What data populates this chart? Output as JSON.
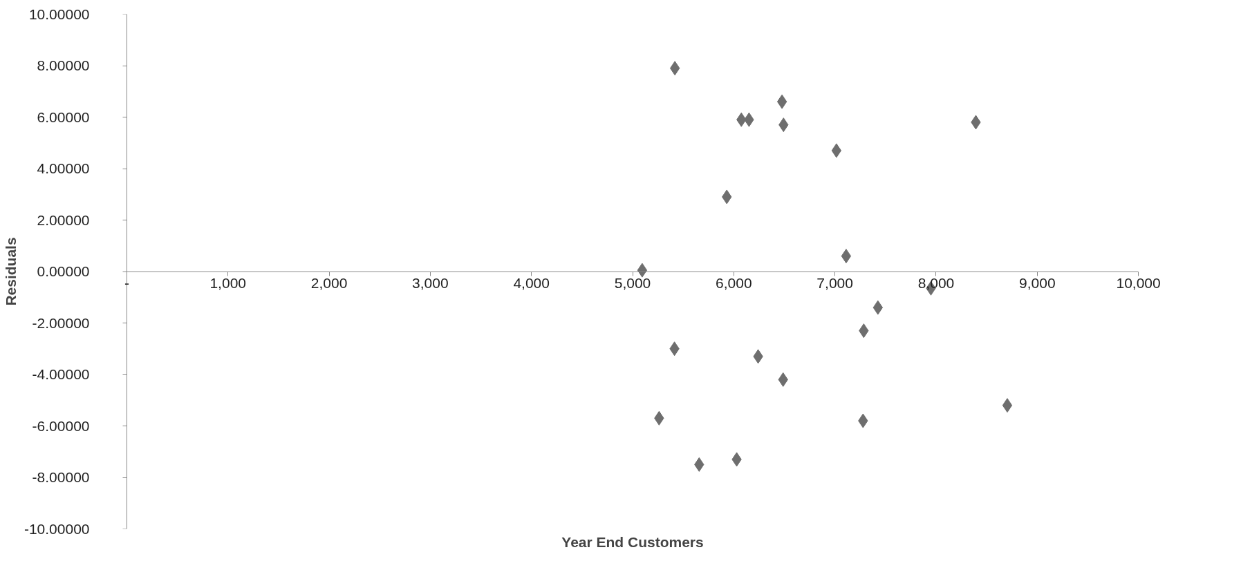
{
  "chart_data": {
    "type": "scatter",
    "xlabel": "Year End Customers",
    "ylabel": "Residuals",
    "x": [
      5418,
      6477,
      6075,
      6151,
      6492,
      8393,
      7015,
      5931,
      7111,
      5095,
      7949,
      7425,
      7285,
      5414,
      6241,
      6488,
      8704,
      5262,
      7278,
      5658,
      6029
    ],
    "series": [
      {
        "color": "#6e6e6e",
        "values": [
          7.9,
          6.6,
          5.9,
          5.9,
          5.7,
          5.8,
          4.7,
          2.9,
          0.6,
          0.05,
          -0.65,
          -1.4,
          -2.3,
          -3.0,
          -3.3,
          -4.2,
          -5.2,
          -5.7,
          -5.8,
          -7.5,
          -7.3
        ]
      }
    ],
    "marker": "diamond",
    "grid": false,
    "xlim": [
      0,
      10000
    ],
    "xticks": [
      {
        "value": 0,
        "label": "-"
      },
      {
        "value": 1000,
        "label": "1,000"
      },
      {
        "value": 2000,
        "label": "2,000"
      },
      {
        "value": 3000,
        "label": "3,000"
      },
      {
        "value": 4000,
        "label": "4,000"
      },
      {
        "value": 5000,
        "label": "5,000"
      },
      {
        "value": 6000,
        "label": "6,000"
      },
      {
        "value": 7000,
        "label": "7,000"
      },
      {
        "value": 8000,
        "label": "8,000"
      },
      {
        "value": 9000,
        "label": "9,000"
      },
      {
        "value": 10000,
        "label": "10,000"
      }
    ],
    "ylim": [
      -10,
      10
    ],
    "yticks": [
      {
        "value": -10,
        "label": "-10.00000"
      },
      {
        "value": -8,
        "label": "-8.00000"
      },
      {
        "value": -6,
        "label": "-6.00000"
      },
      {
        "value": -4,
        "label": "-4.00000"
      },
      {
        "value": -2,
        "label": "-2.00000"
      },
      {
        "value": 0,
        "label": "0.00000"
      },
      {
        "value": 2,
        "label": "2.00000"
      },
      {
        "value": 4,
        "label": "4.00000"
      },
      {
        "value": 6,
        "label": "6.00000"
      },
      {
        "value": 8,
        "label": "8.00000"
      },
      {
        "value": 10,
        "label": "10.00000"
      }
    ]
  }
}
